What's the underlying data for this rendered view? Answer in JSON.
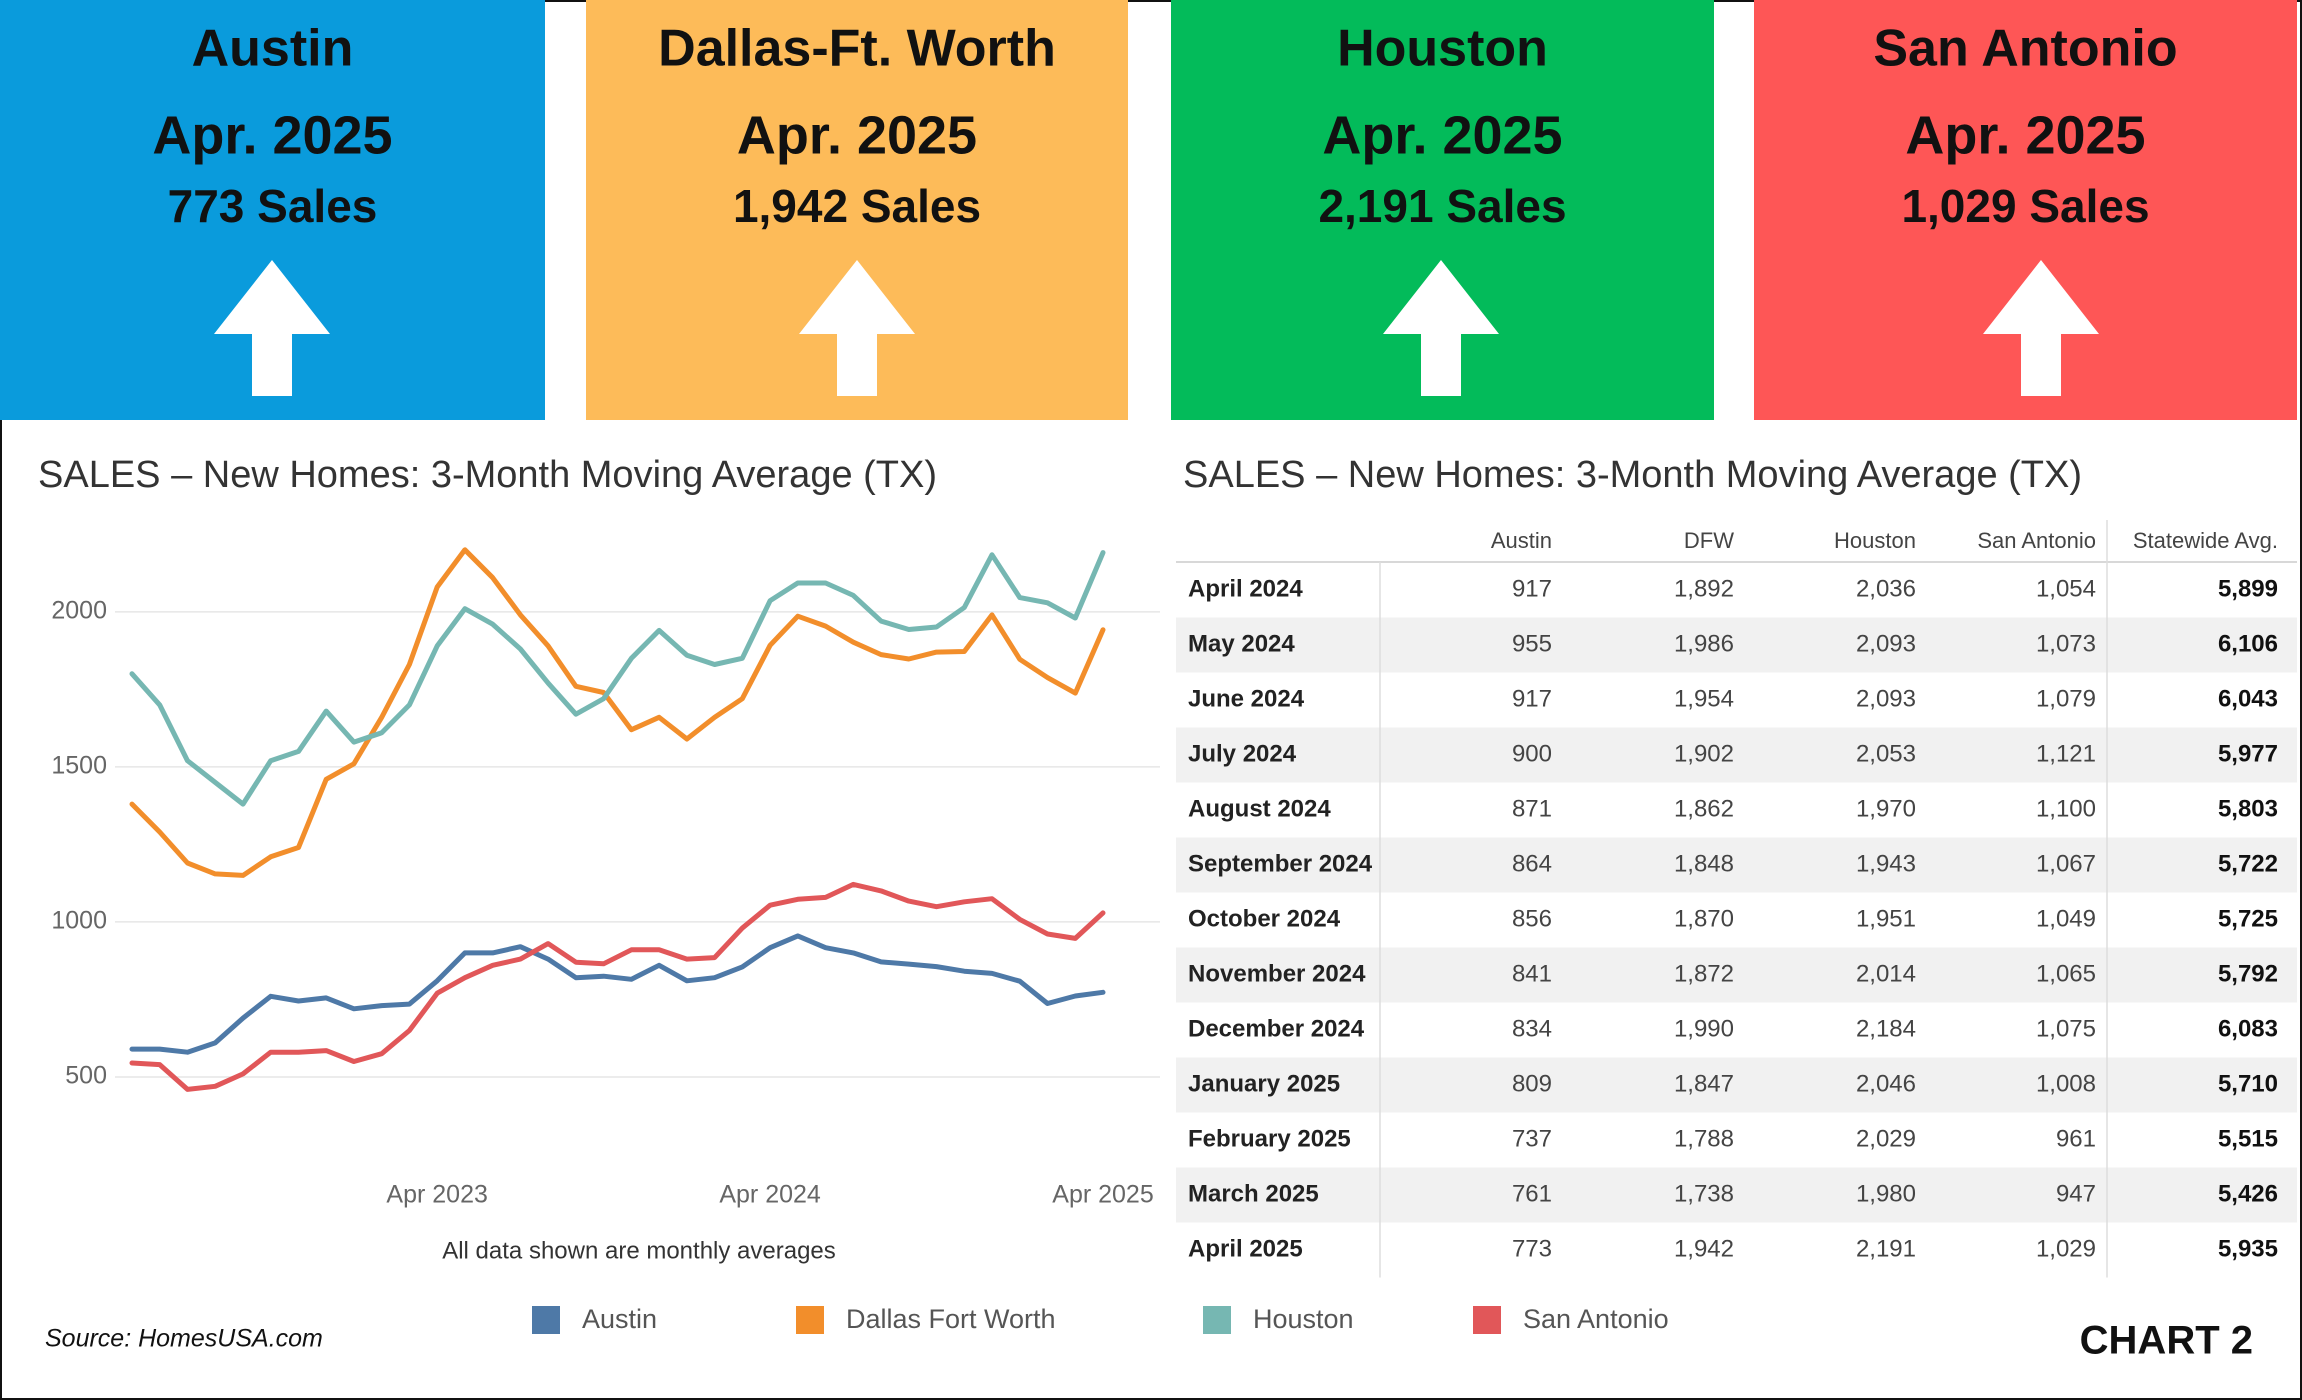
{
  "tiles": [
    {
      "city": "Austin",
      "period": "Apr. 2025",
      "sales": "773 Sales",
      "color": "#0a9bdc"
    },
    {
      "city": "Dallas-Ft. Worth",
      "period": "Apr. 2025",
      "sales": "1,942 Sales",
      "color": "#fdbb59"
    },
    {
      "city": "Houston",
      "period": "Apr. 2025",
      "sales": "2,191 Sales",
      "color": "#03bb5a"
    },
    {
      "city": "San Antonio",
      "period": "Apr. 2025",
      "sales": "1,029 Sales",
      "color": "#fe5656"
    }
  ],
  "chart_data": {
    "type": "line",
    "title": "SALES – New Homes: 3-Month Moving Average (TX)",
    "note": "All data shown are monthly averages",
    "categories": [
      null,
      null,
      null,
      null,
      null,
      null,
      null,
      null,
      null,
      null,
      null,
      "Apr 2023",
      null,
      null,
      null,
      null,
      null,
      null,
      null,
      null,
      null,
      null,
      null,
      "Apr 2024",
      null,
      null,
      null,
      null,
      null,
      null,
      null,
      null,
      null,
      null,
      null,
      "Apr 2025"
    ],
    "ylim": [
      200,
      2280
    ],
    "yticks": [
      500,
      1000,
      1500,
      2000
    ],
    "grid": true,
    "series": [
      {
        "name": "Austin",
        "color": "#4e79a7",
        "values": [
          590,
          590,
          580,
          610,
          690,
          760,
          745,
          755,
          720,
          730,
          735,
          810,
          900,
          900,
          920,
          880,
          820,
          825,
          815,
          860,
          810,
          820,
          855,
          917,
          955,
          917,
          900,
          871,
          864,
          856,
          841,
          834,
          809,
          737,
          761,
          773
        ]
      },
      {
        "name": "Dallas Fort Worth",
        "color": "#f28e2b",
        "values": [
          1380,
          1290,
          1190,
          1155,
          1150,
          1210,
          1240,
          1460,
          1510,
          1660,
          1830,
          2080,
          2200,
          2110,
          1990,
          1890,
          1760,
          1740,
          1620,
          1660,
          1590,
          1660,
          1720,
          1892,
          1986,
          1954,
          1902,
          1862,
          1848,
          1870,
          1872,
          1990,
          1847,
          1788,
          1738,
          1942
        ]
      },
      {
        "name": "Houston",
        "color": "#76b7b2",
        "values": [
          1800,
          1700,
          1520,
          1450,
          1380,
          1520,
          1550,
          1680,
          1580,
          1610,
          1700,
          1890,
          2010,
          1960,
          1880,
          1770,
          1670,
          1720,
          1850,
          1940,
          1860,
          1830,
          1850,
          2036,
          2093,
          2093,
          2053,
          1970,
          1943,
          1951,
          2014,
          2184,
          2046,
          2029,
          1980,
          2191
        ]
      },
      {
        "name": "San Antonio",
        "color": "#e15759",
        "values": [
          545,
          540,
          460,
          470,
          510,
          580,
          580,
          585,
          550,
          575,
          650,
          770,
          820,
          860,
          880,
          930,
          870,
          865,
          910,
          910,
          880,
          885,
          980,
          1054,
          1073,
          1079,
          1121,
          1100,
          1067,
          1049,
          1065,
          1075,
          1008,
          961,
          947,
          1029
        ]
      }
    ]
  },
  "table": {
    "title": "SALES – New Homes: 3-Month Moving Average (TX)",
    "columns": [
      "Austin",
      "DFW",
      "Houston",
      "San Antonio",
      "Statewide Avg."
    ],
    "rows": [
      [
        "April 2024",
        "917",
        "1,892",
        "2,036",
        "1,054",
        "5,899"
      ],
      [
        "May 2024",
        "955",
        "1,986",
        "2,093",
        "1,073",
        "6,106"
      ],
      [
        "June 2024",
        "917",
        "1,954",
        "2,093",
        "1,079",
        "6,043"
      ],
      [
        "July 2024",
        "900",
        "1,902",
        "2,053",
        "1,121",
        "5,977"
      ],
      [
        "August 2024",
        "871",
        "1,862",
        "1,970",
        "1,100",
        "5,803"
      ],
      [
        "September 2024",
        "864",
        "1,848",
        "1,943",
        "1,067",
        "5,722"
      ],
      [
        "October 2024",
        "856",
        "1,870",
        "1,951",
        "1,049",
        "5,725"
      ],
      [
        "November 2024",
        "841",
        "1,872",
        "2,014",
        "1,065",
        "5,792"
      ],
      [
        "December 2024",
        "834",
        "1,990",
        "2,184",
        "1,075",
        "6,083"
      ],
      [
        "January 2025",
        "809",
        "1,847",
        "2,046",
        "1,008",
        "5,710"
      ],
      [
        "February 2025",
        "737",
        "1,788",
        "2,029",
        "961",
        "5,515"
      ],
      [
        "March 2025",
        "761",
        "1,738",
        "1,980",
        "947",
        "5,426"
      ],
      [
        "April 2025",
        "773",
        "1,942",
        "2,191",
        "1,029",
        "5,935"
      ]
    ]
  },
  "source": "Source: HomesUSA.com",
  "chart_label": "CHART 2"
}
